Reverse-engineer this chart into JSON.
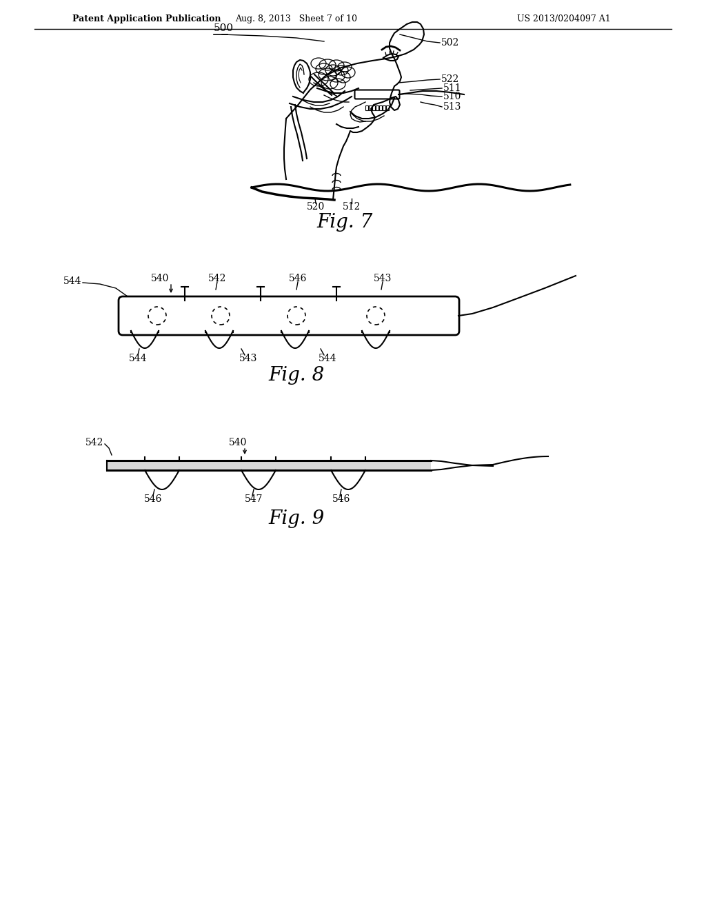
{
  "bg_color": "#ffffff",
  "line_color": "#000000",
  "header": {
    "left": "Patent Application Publication",
    "center": "Aug. 8, 2013   Sheet 7 of 10",
    "right": "US 2013/0204097 A1"
  },
  "fig7": {
    "label": "Fig. 7",
    "ref_500": "500",
    "ref_502": "502",
    "ref_510": "510",
    "ref_511": "511",
    "ref_512": "512",
    "ref_513": "513",
    "ref_520": "520",
    "ref_522": "522"
  },
  "fig8": {
    "label": "Fig. 8",
    "ref_540": "540",
    "ref_542": "542",
    "ref_543": "543",
    "ref_544": "544",
    "ref_546": "546"
  },
  "fig9": {
    "label": "Fig. 9",
    "ref_540": "540",
    "ref_542": "542",
    "ref_546": "546",
    "ref_547": "547"
  }
}
